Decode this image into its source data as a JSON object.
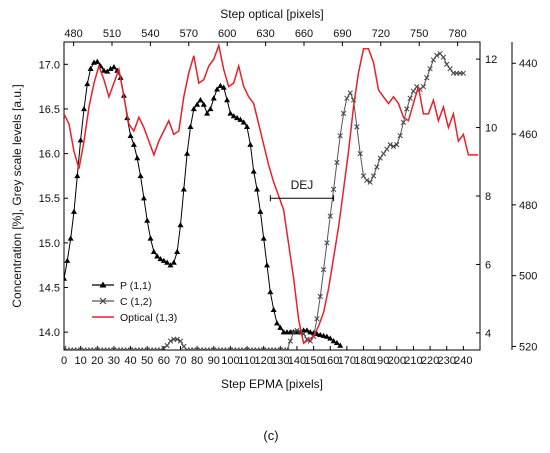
{
  "chart_data": {
    "type": "line",
    "panel_label": "(c)",
    "xlabel_bottom": "Step EPMA [pixels]",
    "xlabel_top": "Step optical [pixels]",
    "ylabel_left": "Concentration [%], Grey scale levels [a.u.]",
    "x_bottom": {
      "range": [
        0,
        250
      ],
      "ticks": [
        0,
        10,
        20,
        30,
        40,
        50,
        60,
        70,
        80,
        90,
        100,
        110,
        120,
        130,
        140,
        150,
        160,
        170,
        180,
        190,
        200,
        210,
        220,
        230,
        240
      ]
    },
    "x_top": {
      "range": [
        472.5,
        797.5
      ],
      "ticks": [
        480,
        510,
        540,
        570,
        600,
        630,
        660,
        690,
        720,
        750,
        780
      ]
    },
    "y_left": {
      "range": [
        13.8,
        17.25
      ],
      "ticks": [
        14.0,
        14.5,
        15.0,
        15.5,
        16.0,
        16.5,
        17.0
      ]
    },
    "y_right1": {
      "range": [
        3.5,
        12.5
      ],
      "ticks": [
        4,
        6,
        8,
        10,
        12
      ]
    },
    "y_right2": {
      "range": [
        521,
        434
      ],
      "ticks": [
        440,
        460,
        480,
        500,
        520
      ]
    },
    "annotation": {
      "text": "DEJ",
      "x_start": 124,
      "x_end": 162,
      "y": 15.5
    },
    "series": [
      {
        "name": "P (1,1)",
        "color": "#000000",
        "marker": "triangle",
        "x": [
          0,
          2,
          4,
          6,
          8,
          10,
          12,
          14,
          16,
          18,
          20,
          22,
          24,
          26,
          28,
          30,
          32,
          34,
          36,
          38,
          40,
          42,
          44,
          46,
          48,
          50,
          52,
          54,
          56,
          58,
          60,
          62,
          64,
          66,
          68,
          70,
          72,
          74,
          76,
          78,
          80,
          82,
          84,
          86,
          88,
          90,
          92,
          94,
          96,
          98,
          100,
          102,
          104,
          106,
          108,
          110,
          112,
          114,
          116,
          118,
          120,
          122,
          124,
          126,
          128,
          130,
          132,
          134,
          136,
          138,
          140,
          142,
          144,
          146,
          148,
          150,
          152,
          154,
          156,
          158,
          160,
          162,
          164,
          166
        ],
        "y": [
          14.6,
          14.8,
          15.05,
          15.35,
          15.75,
          16.15,
          16.5,
          16.78,
          16.95,
          17.02,
          17.03,
          16.98,
          16.93,
          16.92,
          16.95,
          16.97,
          16.93,
          16.85,
          16.65,
          16.4,
          16.2,
          16.1,
          15.95,
          15.75,
          15.5,
          15.25,
          15.05,
          14.9,
          14.85,
          14.82,
          14.8,
          14.78,
          14.75,
          14.78,
          14.9,
          15.2,
          15.6,
          16.0,
          16.3,
          16.5,
          16.55,
          16.6,
          16.55,
          16.45,
          16.5,
          16.62,
          16.72,
          16.76,
          16.74,
          16.6,
          16.45,
          16.42,
          16.4,
          16.38,
          16.35,
          16.3,
          16.1,
          15.8,
          15.6,
          15.35,
          15.05,
          14.75,
          14.45,
          14.25,
          14.1,
          14.05,
          14.0,
          14.0,
          14.0,
          14.0,
          14.0,
          14.0,
          14.02,
          14.02,
          14.0,
          13.99,
          13.98,
          13.97,
          13.96,
          13.95,
          13.93,
          13.9,
          13.88,
          13.85
        ]
      },
      {
        "name": "C (1,2)",
        "color": "#555555",
        "marker": "x",
        "x": [
          0,
          2,
          4,
          6,
          8,
          10,
          12,
          14,
          16,
          18,
          20,
          22,
          24,
          26,
          28,
          30,
          32,
          34,
          36,
          38,
          40,
          42,
          44,
          46,
          48,
          50,
          52,
          54,
          56,
          58,
          60,
          62,
          64,
          66,
          68,
          70,
          72,
          74,
          76,
          78,
          80,
          82,
          84,
          86,
          88,
          90,
          92,
          94,
          96,
          98,
          100,
          102,
          104,
          106,
          108,
          110,
          112,
          114,
          116,
          118,
          120,
          122,
          124,
          126,
          128,
          130,
          132,
          134,
          136,
          138,
          140,
          142,
          144,
          146,
          148,
          150,
          152,
          154,
          156,
          158,
          160,
          162,
          164,
          166,
          168,
          170,
          172,
          174,
          176,
          178,
          180,
          182,
          184,
          186,
          188,
          190,
          192,
          194,
          196,
          198,
          200,
          202,
          204,
          206,
          208,
          210,
          212,
          214,
          216,
          218,
          220,
          222,
          224,
          226,
          228,
          230,
          232,
          234,
          236,
          238,
          240
        ],
        "y": [
          13.82,
          13.8,
          13.8,
          13.8,
          13.8,
          13.8,
          13.8,
          13.8,
          13.8,
          13.8,
          13.8,
          13.8,
          13.8,
          13.8,
          13.8,
          13.8,
          13.8,
          13.8,
          13.8,
          13.8,
          13.8,
          13.8,
          13.8,
          13.8,
          13.8,
          13.8,
          13.8,
          13.8,
          13.8,
          13.8,
          13.82,
          13.85,
          13.9,
          13.92,
          13.92,
          13.9,
          13.84,
          13.8,
          13.8,
          13.8,
          13.8,
          13.8,
          13.8,
          13.8,
          13.8,
          13.8,
          13.8,
          13.8,
          13.8,
          13.8,
          13.8,
          13.8,
          13.8,
          13.8,
          13.8,
          13.8,
          13.8,
          13.8,
          13.8,
          13.8,
          13.8,
          13.8,
          13.8,
          13.8,
          13.8,
          13.8,
          13.8,
          13.8,
          13.9,
          14.0,
          14.02,
          14.0,
          13.98,
          13.92,
          13.9,
          13.95,
          14.15,
          14.4,
          14.7,
          15.0,
          15.3,
          15.6,
          15.9,
          16.2,
          16.45,
          16.62,
          16.68,
          16.6,
          16.3,
          16.0,
          15.75,
          15.7,
          15.68,
          15.75,
          15.85,
          15.95,
          16.0,
          16.05,
          16.1,
          16.08,
          16.1,
          16.2,
          16.35,
          16.5,
          16.62,
          16.7,
          16.75,
          16.72,
          16.75,
          16.85,
          16.95,
          17.05,
          17.1,
          17.12,
          17.08,
          17.0,
          16.95,
          16.9,
          16.9,
          16.9,
          16.9
        ]
      },
      {
        "name": "Optical (1,3)",
        "color": "#e8212b",
        "marker": "none",
        "x": [
          0,
          3,
          6,
          9,
          12,
          15,
          18,
          21,
          24,
          27,
          30,
          33,
          36,
          39,
          42,
          45,
          48,
          51,
          54,
          57,
          60,
          63,
          66,
          69,
          72,
          75,
          78,
          81,
          84,
          87,
          90,
          93,
          96,
          99,
          102,
          105,
          108,
          111,
          114,
          117,
          120,
          123,
          126,
          129,
          132,
          135,
          138,
          141,
          144,
          147,
          150,
          153,
          156,
          159,
          162,
          165,
          168,
          171,
          174,
          177,
          180,
          183,
          186,
          189,
          192,
          195,
          198,
          201,
          204,
          207,
          210,
          213,
          216,
          219,
          222,
          225,
          228,
          231,
          234,
          237,
          240,
          243,
          246,
          249
        ],
        "y": [
          10.4,
          10.1,
          9.3,
          8.8,
          9.6,
          10.6,
          11.3,
          11.8,
          11.4,
          10.9,
          11.3,
          11.7,
          10.9,
          10.1,
          9.9,
          10.3,
          10.0,
          9.6,
          9.2,
          9.6,
          9.9,
          10.2,
          9.8,
          9.9,
          10.9,
          11.6,
          12.1,
          11.3,
          11.4,
          11.8,
          12.0,
          12.4,
          11.7,
          11.2,
          11.3,
          11.8,
          11.2,
          10.9,
          10.7,
          10.1,
          9.5,
          8.9,
          8.4,
          8.0,
          7.6,
          6.6,
          5.6,
          4.4,
          3.7,
          3.8,
          3.9,
          4.2,
          4.6,
          5.3,
          6.2,
          7.1,
          8.2,
          9.3,
          10.6,
          11.6,
          12.3,
          12.3,
          11.9,
          11.1,
          10.9,
          10.7,
          10.9,
          10.7,
          10.3,
          10.2,
          10.7,
          11.2,
          10.4,
          10.4,
          10.8,
          10.2,
          10.6,
          10.0,
          10.4,
          9.6,
          9.8,
          9.2,
          9.2,
          9.2
        ]
      }
    ]
  }
}
